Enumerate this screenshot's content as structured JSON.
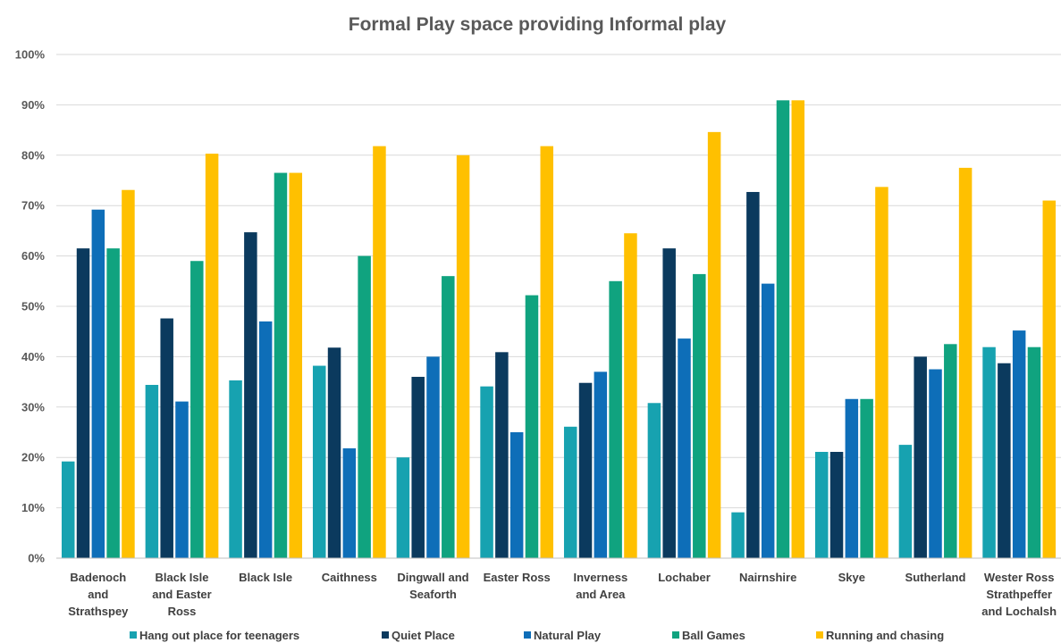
{
  "chart_data": {
    "type": "bar",
    "title": "Formal Play space providing Informal play",
    "xlabel": "",
    "ylabel": "",
    "ylim": [
      0,
      100
    ],
    "yticks": [
      "0%",
      "10%",
      "20%",
      "30%",
      "40%",
      "50%",
      "60%",
      "70%",
      "80%",
      "90%",
      "100%"
    ],
    "grid": true,
    "legend_position": "bottom",
    "categories": [
      "Badenoch and Strathspey",
      "Black Isle and Easter Ross",
      "Black Isle",
      "Caithness",
      "Dingwall and Seaforth",
      "Easter Ross",
      "Inverness and Area",
      "Lochaber",
      "Nairnshire",
      "Skye",
      "Sutherland",
      "Wester Ross Strathpeffer and Lochalsh"
    ],
    "category_lines": [
      [
        "Badenoch",
        "and",
        "Strathspey"
      ],
      [
        "Black Isle",
        "and Easter",
        "Ross"
      ],
      [
        "Black Isle"
      ],
      [
        "Caithness"
      ],
      [
        "Dingwall and",
        "Seaforth"
      ],
      [
        "Easter Ross"
      ],
      [
        "Inverness",
        "and Area"
      ],
      [
        "Lochaber"
      ],
      [
        "Nairnshire"
      ],
      [
        "Skye"
      ],
      [
        "Sutherland"
      ],
      [
        "Wester Ross",
        "Strathpeffer",
        "and Lochalsh"
      ]
    ],
    "series": [
      {
        "name": "Hang out place for teenagers",
        "color": "#17a2b0",
        "values": [
          19.2,
          34.4,
          35.3,
          38.2,
          20.0,
          34.1,
          26.1,
          30.8,
          9.1,
          21.1,
          22.5,
          41.9
        ]
      },
      {
        "name": "Quiet Place",
        "color": "#0b3a5e",
        "values": [
          61.5,
          47.6,
          64.7,
          41.8,
          36.0,
          40.9,
          34.8,
          61.5,
          72.7,
          21.1,
          40.0,
          38.7
        ]
      },
      {
        "name": "Natural Play",
        "color": "#0e6eb8",
        "values": [
          69.2,
          31.1,
          47.0,
          21.8,
          40.0,
          25.0,
          37.0,
          43.6,
          54.5,
          31.6,
          37.5,
          45.2
        ]
      },
      {
        "name": "Ball Games",
        "color": "#10a37f",
        "values": [
          61.5,
          59.0,
          76.5,
          60.0,
          56.0,
          52.2,
          55.0,
          56.4,
          90.9,
          31.6,
          42.5,
          41.9
        ]
      },
      {
        "name": "Running and chasing",
        "color": "#ffc000",
        "values": [
          73.1,
          80.3,
          76.5,
          81.8,
          80.0,
          81.8,
          64.5,
          84.6,
          90.9,
          73.7,
          77.5,
          71.0
        ]
      }
    ]
  }
}
